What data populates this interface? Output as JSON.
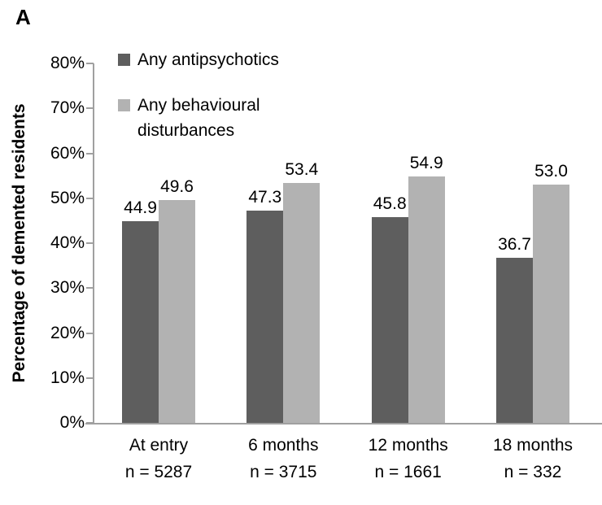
{
  "figure": {
    "panel_label": "A"
  },
  "chart_data": {
    "type": "bar",
    "title": "",
    "xlabel": "",
    "ylabel": "Percentage of demented residents",
    "ylim": [
      0,
      80
    ],
    "ytick_step": 10,
    "yticklabels": [
      "0%",
      "10%",
      "20%",
      "30%",
      "40%",
      "50%",
      "60%",
      "70%",
      "80%"
    ],
    "grid": false,
    "legend_position": "top-left-inside",
    "value_labels": true,
    "value_label_decimals": 1,
    "categories": [
      "At entry",
      "6 months",
      "12 months",
      "18 months"
    ],
    "category_sublabels": [
      "n = 5287",
      "n = 3715",
      "n = 1661",
      "n = 332"
    ],
    "series": [
      {
        "name": "Any antipsychotics",
        "color": "#5e5e5e",
        "values": [
          44.9,
          47.3,
          45.8,
          36.7
        ]
      },
      {
        "name": "Any behavioural disturbances",
        "color": "#b2b2b2",
        "values": [
          49.6,
          53.4,
          54.9,
          53.0
        ]
      }
    ]
  },
  "colors": {
    "axis": "#a0a0a0",
    "text": "#000000",
    "background": "#ffffff"
  }
}
